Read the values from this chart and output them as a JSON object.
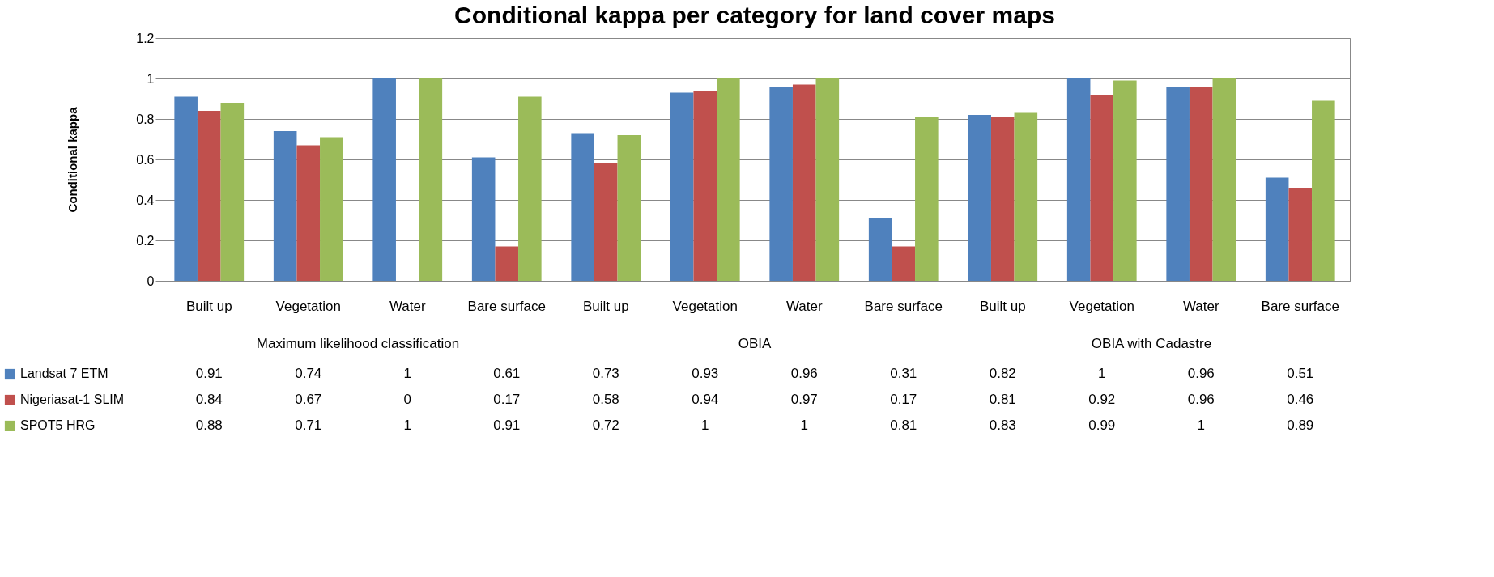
{
  "chart_data": {
    "type": "bar",
    "title": "Conditional kappa per category for land cover maps",
    "ylabel": "Conditional kappa",
    "categories": [
      "Built up",
      "Vegetation",
      "Water",
      "Bare surface",
      "Built up",
      "Vegetation",
      "Water",
      "Bare surface",
      "Built up",
      "Vegetation",
      "Water",
      "Bare surface"
    ],
    "annotations": [
      "Maximum likelihood classification",
      "OBIA",
      "OBIA with Cadastre"
    ],
    "series": [
      {
        "name": "Landsat 7 ETM",
        "color": "#4f81bd",
        "values": [
          0.91,
          0.74,
          1,
          0.61,
          0.73,
          0.93,
          0.96,
          0.31,
          0.82,
          1,
          0.96,
          0.51
        ]
      },
      {
        "name": "Nigeriasat-1 SLIM",
        "color": "#c0504d",
        "values": [
          0.84,
          0.67,
          0,
          0.17,
          0.58,
          0.94,
          0.97,
          0.17,
          0.81,
          0.92,
          0.96,
          0.46
        ]
      },
      {
        "name": "SPOT5 HRG",
        "color": "#9bbb59",
        "values": [
          0.88,
          0.71,
          1,
          0.91,
          0.72,
          1,
          1,
          0.81,
          0.83,
          0.99,
          1,
          0.89
        ]
      }
    ],
    "ylim": [
      0,
      1.2
    ],
    "yticks": [
      0,
      0.2,
      0.4,
      0.6,
      0.8,
      1,
      1.2
    ],
    "grid": "y",
    "legend": "bottom left",
    "data_labels": true
  }
}
